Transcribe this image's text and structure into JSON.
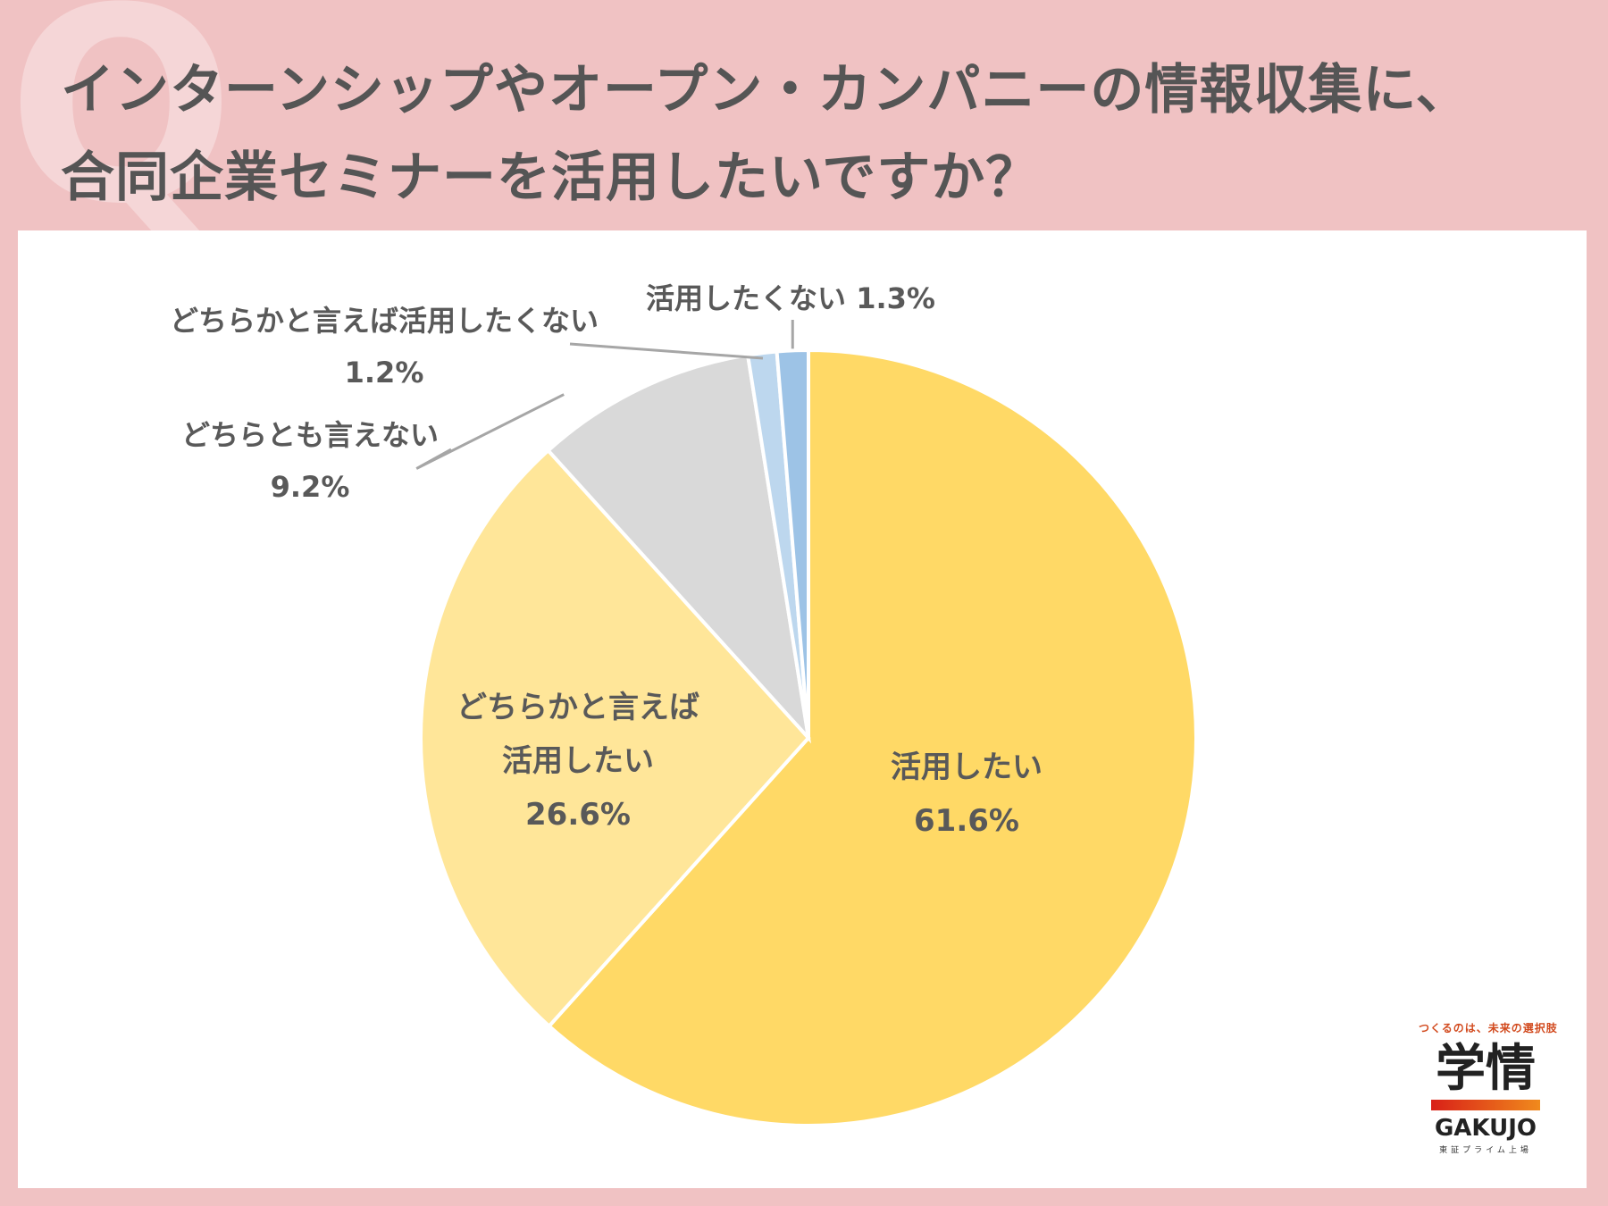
{
  "title": {
    "line1": "インターンシップやオープン・カンパニーの情報収集に、",
    "line2": "合同企業セミナーを活用したいですか？"
  },
  "q_mark": "Q",
  "logo": {
    "tagline": "つくるのは、未来の選択肢",
    "kanji": "学情",
    "latin": "GAKUJO",
    "sub": "東証プライム上場"
  },
  "colors": {
    "background": "#f0c2c3",
    "panel": "#ffffff",
    "text": "#595959"
  },
  "chart_data": {
    "type": "pie",
    "title": "",
    "start": "12 o'clock, clockwise",
    "slices": [
      {
        "label": "活用したい",
        "value": 61.6,
        "display": "61.6%",
        "color": "#ffd966"
      },
      {
        "label": "どちらかと言えば活用したい",
        "value": 26.6,
        "display": "26.6%",
        "color": "#ffe699"
      },
      {
        "label": "どちらとも言えない",
        "value": 9.2,
        "display": "9.2%",
        "color": "#d9d9d9"
      },
      {
        "label": "どちらかと言えば活用したくない",
        "value": 1.2,
        "display": "1.2%",
        "color": "#bdd7ee"
      },
      {
        "label": "活用したくない",
        "value": 1.3,
        "display": "1.3%",
        "color": "#9dc3e6"
      }
    ]
  }
}
